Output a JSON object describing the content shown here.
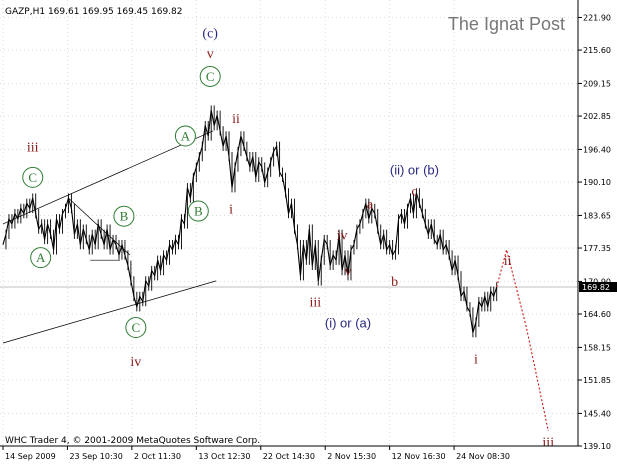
{
  "header": {
    "symbol_line": "GAZP,H1  169.61 169.95 169.45 169.82",
    "watermark": "The Ignat Post",
    "copyright": "WHC Trader 4, © 2001-2009 MetaQuotes Software Corp."
  },
  "colors": {
    "price": "#000000",
    "channel": "#000000",
    "green_wave": "#2e7d32",
    "red_wave": "#8b1a1a",
    "blue_wave": "#2a2a80",
    "projection": "#cc0000",
    "current_price_box": "#000000",
    "grid": "#c8c8c8",
    "watermark": "#777777"
  },
  "chart_data": {
    "type": "line",
    "instrument": "GAZP",
    "timeframe": "H1",
    "ohlc_last": {
      "open": 169.61,
      "high": 169.95,
      "low": 169.45,
      "close": 169.82
    },
    "y_ticks": [
      "221.90",
      "215.60",
      "209.15",
      "202.85",
      "196.40",
      "190.10",
      "183.65",
      "177.35",
      "170.90",
      "164.60",
      "158.15",
      "151.85",
      "145.40",
      "139.10"
    ],
    "ylim": [
      139.1,
      224.5
    ],
    "current_price": "169.82",
    "x_ticks": [
      "14 Sep 2009",
      "23 Sep 10:30",
      "2 Oct 11:30",
      "13 Oct 12:30",
      "22 Oct 14:30",
      "2 Nov 15:30",
      "12 Nov 16:30",
      "24 Nov 08:30"
    ],
    "x_tick_index": [
      0,
      65,
      130,
      195,
      260,
      325,
      390,
      455
    ],
    "x_range": [
      0,
      580
    ],
    "price_series": [
      [
        0,
        178
      ],
      [
        3,
        180
      ],
      [
        6,
        183
      ],
      [
        9,
        182
      ],
      [
        12,
        184
      ],
      [
        15,
        183
      ],
      [
        18,
        185
      ],
      [
        21,
        184
      ],
      [
        24,
        186
      ],
      [
        27,
        185
      ],
      [
        30,
        187
      ],
      [
        33,
        184
      ],
      [
        36,
        181
      ],
      [
        39,
        182
      ],
      [
        42,
        179
      ],
      [
        45,
        182
      ],
      [
        48,
        180
      ],
      [
        51,
        177
      ],
      [
        54,
        183
      ],
      [
        57,
        181
      ],
      [
        60,
        184
      ],
      [
        63,
        185
      ],
      [
        66,
        187
      ],
      [
        69,
        185
      ],
      [
        72,
        180
      ],
      [
        75,
        182
      ],
      [
        78,
        178
      ],
      [
        81,
        181
      ],
      [
        84,
        179
      ],
      [
        87,
        177
      ],
      [
        90,
        180
      ],
      [
        93,
        178
      ],
      [
        96,
        182
      ],
      [
        99,
        180
      ],
      [
        102,
        178
      ],
      [
        105,
        181
      ],
      [
        108,
        177
      ],
      [
        111,
        179
      ],
      [
        114,
        178
      ],
      [
        117,
        176
      ],
      [
        120,
        178
      ],
      [
        123,
        176
      ],
      [
        126,
        174
      ],
      [
        129,
        171
      ],
      [
        132,
        168
      ],
      [
        135,
        166
      ],
      [
        138,
        168
      ],
      [
        141,
        167
      ],
      [
        144,
        171
      ],
      [
        147,
        170
      ],
      [
        150,
        173
      ],
      [
        153,
        172
      ],
      [
        156,
        175
      ],
      [
        159,
        173
      ],
      [
        162,
        176
      ],
      [
        165,
        175
      ],
      [
        168,
        178
      ],
      [
        171,
        177
      ],
      [
        174,
        179
      ],
      [
        177,
        178
      ],
      [
        180,
        183
      ],
      [
        183,
        182
      ],
      [
        186,
        189
      ],
      [
        189,
        187
      ],
      [
        192,
        191
      ],
      [
        195,
        193
      ],
      [
        198,
        195
      ],
      [
        201,
        197
      ],
      [
        204,
        201
      ],
      [
        207,
        199
      ],
      [
        210,
        204
      ],
      [
        213,
        201
      ],
      [
        216,
        203
      ],
      [
        219,
        200
      ],
      [
        222,
        197
      ],
      [
        225,
        199
      ],
      [
        228,
        195
      ],
      [
        231,
        189
      ],
      [
        234,
        193
      ],
      [
        237,
        196
      ],
      [
        240,
        199
      ],
      [
        243,
        197
      ],
      [
        246,
        195
      ],
      [
        249,
        193
      ],
      [
        252,
        195
      ],
      [
        255,
        191
      ],
      [
        258,
        194
      ],
      [
        261,
        193
      ],
      [
        264,
        190
      ],
      [
        267,
        192
      ],
      [
        270,
        194
      ],
      [
        273,
        196
      ],
      [
        276,
        197
      ],
      [
        279,
        192
      ],
      [
        282,
        191
      ],
      [
        285,
        188
      ],
      [
        288,
        184
      ],
      [
        291,
        186
      ],
      [
        294,
        181
      ],
      [
        297,
        178
      ],
      [
        300,
        172
      ],
      [
        303,
        178
      ],
      [
        306,
        175
      ],
      [
        309,
        181
      ],
      [
        312,
        174
      ],
      [
        315,
        178
      ],
      [
        318,
        171
      ],
      [
        321,
        175
      ],
      [
        324,
        179
      ],
      [
        327,
        178
      ],
      [
        330,
        174
      ],
      [
        333,
        176
      ],
      [
        336,
        175
      ],
      [
        339,
        180
      ],
      [
        342,
        173
      ],
      [
        345,
        176
      ],
      [
        348,
        172
      ],
      [
        351,
        177
      ],
      [
        354,
        178
      ],
      [
        357,
        181
      ],
      [
        360,
        182
      ],
      [
        363,
        184
      ],
      [
        366,
        186
      ],
      [
        369,
        183
      ],
      [
        372,
        185
      ],
      [
        375,
        184
      ],
      [
        378,
        181
      ],
      [
        381,
        178
      ],
      [
        384,
        180
      ],
      [
        387,
        177
      ],
      [
        390,
        178
      ],
      [
        393,
        176
      ],
      [
        396,
        177
      ],
      [
        399,
        183
      ],
      [
        402,
        184
      ],
      [
        405,
        182
      ],
      [
        408,
        185
      ],
      [
        411,
        187
      ],
      [
        414,
        184
      ],
      [
        417,
        188
      ],
      [
        420,
        186
      ],
      [
        423,
        184
      ],
      [
        426,
        182
      ],
      [
        429,
        180
      ],
      [
        432,
        182
      ],
      [
        435,
        179
      ],
      [
        438,
        178
      ],
      [
        441,
        180
      ],
      [
        444,
        177
      ],
      [
        447,
        178
      ],
      [
        450,
        176
      ],
      [
        453,
        173
      ],
      [
        456,
        175
      ],
      [
        459,
        172
      ],
      [
        462,
        168
      ],
      [
        465,
        169
      ],
      [
        468,
        166
      ],
      [
        471,
        165
      ],
      [
        474,
        161
      ],
      [
        477,
        163
      ],
      [
        480,
        167
      ],
      [
        483,
        166
      ],
      [
        486,
        168
      ],
      [
        489,
        166
      ],
      [
        492,
        169
      ],
      [
        495,
        168
      ],
      [
        498,
        169.82
      ]
    ],
    "projection_path": [
      [
        498,
        169.82
      ],
      [
        508,
        177
      ],
      [
        528,
        162
      ],
      [
        550,
        142
      ]
    ],
    "channel_lines": [
      {
        "name": "upper",
        "points": [
          [
            0,
            182
          ],
          [
            212,
            200
          ]
        ]
      },
      {
        "name": "lower",
        "points": [
          [
            0,
            159
          ],
          [
            215,
            171
          ]
        ]
      }
    ],
    "triangle_lines": [
      {
        "name": "triangle-upper",
        "points": [
          [
            66,
            187
          ],
          [
            128,
            176
          ]
        ]
      },
      {
        "name": "triangle-lower",
        "points": [
          [
            88,
            175
          ],
          [
            118,
            175
          ]
        ]
      }
    ],
    "wave_labels": [
      {
        "text": "iii",
        "x": 30,
        "y": 197,
        "color": "red",
        "circled": false
      },
      {
        "text": "C",
        "x": 30,
        "y": 191,
        "color": "green",
        "circled": true
      },
      {
        "text": "A",
        "x": 38,
        "y": 175.5,
        "color": "green",
        "circled": true
      },
      {
        "text": "B",
        "x": 122,
        "y": 183.5,
        "color": "green",
        "circled": true
      },
      {
        "text": "C",
        "x": 134,
        "y": 162,
        "color": "green",
        "circled": true
      },
      {
        "text": "iv",
        "x": 134,
        "y": 155.5,
        "color": "red",
        "circled": false
      },
      {
        "text": "A",
        "x": 184,
        "y": 199,
        "color": "green",
        "circled": true
      },
      {
        "text": "B",
        "x": 197,
        "y": 184.5,
        "color": "green",
        "circled": true
      },
      {
        "text": "C",
        "x": 209,
        "y": 210.5,
        "color": "green",
        "circled": true
      },
      {
        "text": "(c)",
        "x": 209,
        "y": 219,
        "color": "blue",
        "circled": false
      },
      {
        "text": "v",
        "x": 209,
        "y": 215,
        "color": "red",
        "circled": false
      },
      {
        "text": "ii",
        "x": 235,
        "y": 202.5,
        "color": "red",
        "circled": false
      },
      {
        "text": "i",
        "x": 230,
        "y": 185,
        "color": "red",
        "circled": false
      },
      {
        "text": "iii",
        "x": 315,
        "y": 167,
        "color": "red",
        "circled": false
      },
      {
        "text": "(i) or (a)",
        "x": 348,
        "y": 163,
        "color": "blue",
        "circled": false
      },
      {
        "text": "iv",
        "x": 342,
        "y": 180,
        "color": "red",
        "circled": false
      },
      {
        "text": "v",
        "x": 348,
        "y": 173,
        "color": "red",
        "circled": false
      },
      {
        "text": "a",
        "x": 370,
        "y": 186,
        "color": "red",
        "circled": false
      },
      {
        "text": "b",
        "x": 395,
        "y": 171,
        "color": "red",
        "circled": false
      },
      {
        "text": "(ii) or (b)",
        "x": 415,
        "y": 192.5,
        "color": "blue",
        "circled": false
      },
      {
        "text": "c",
        "x": 415,
        "y": 188.5,
        "color": "red",
        "circled": false
      },
      {
        "text": "i",
        "x": 477,
        "y": 156,
        "color": "red",
        "circled": false
      },
      {
        "text": "ii",
        "x": 509,
        "y": 175,
        "color": "red",
        "circled": false
      },
      {
        "text": "iii",
        "x": 550,
        "y": 140,
        "color": "red",
        "circled": false
      }
    ]
  }
}
